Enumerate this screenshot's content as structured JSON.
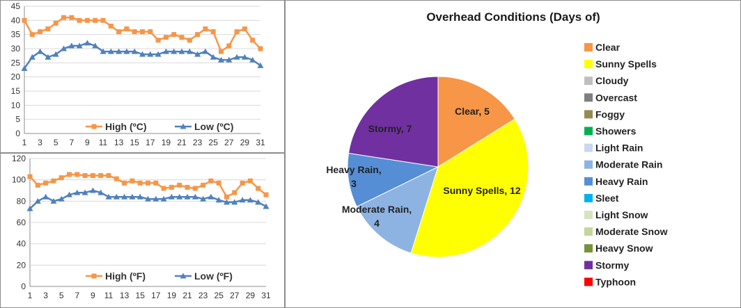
{
  "chart_data": [
    {
      "type": "line",
      "title": "",
      "xlabel": "",
      "ylabel": "",
      "x": [
        1,
        2,
        3,
        4,
        5,
        6,
        7,
        8,
        9,
        10,
        11,
        12,
        13,
        14,
        15,
        16,
        17,
        18,
        19,
        20,
        21,
        22,
        23,
        24,
        25,
        26,
        27,
        28,
        29,
        30,
        31
      ],
      "x_tick_labels": [
        "1",
        "3",
        "5",
        "7",
        "9",
        "11",
        "13",
        "15",
        "17",
        "19",
        "21",
        "23",
        "25",
        "27",
        "29",
        "31"
      ],
      "ylim": [
        0,
        45
      ],
      "y_ticks": [
        0,
        5,
        10,
        15,
        20,
        25,
        30,
        35,
        40,
        45
      ],
      "grid": true,
      "legend_position": "bottom",
      "series": [
        {
          "name": "High (ºC)",
          "color": "#f79646",
          "marker": "square",
          "values": [
            40,
            35,
            36,
            37,
            39,
            41,
            41,
            40,
            40,
            40,
            40,
            38,
            36,
            37,
            36,
            36,
            36,
            33,
            34,
            35,
            34,
            33,
            35,
            37,
            36,
            29,
            31,
            36,
            37,
            33,
            30
          ]
        },
        {
          "name": "Low (ºC)",
          "color": "#4f81bd",
          "marker": "triangle",
          "values": [
            23,
            27,
            29,
            27,
            28,
            30,
            31,
            31,
            32,
            31,
            29,
            29,
            29,
            29,
            29,
            28,
            28,
            28,
            29,
            29,
            29,
            29,
            28,
            29,
            27,
            26,
            26,
            27,
            27,
            26,
            24
          ]
        }
      ]
    },
    {
      "type": "line",
      "title": "",
      "xlabel": "",
      "ylabel": "",
      "x": [
        1,
        2,
        3,
        4,
        5,
        6,
        7,
        8,
        9,
        10,
        11,
        12,
        13,
        14,
        15,
        16,
        17,
        18,
        19,
        20,
        21,
        22,
        23,
        24,
        25,
        26,
        27,
        28,
        29,
        30,
        31
      ],
      "x_tick_labels": [
        "1",
        "3",
        "5",
        "7",
        "9",
        "11",
        "13",
        "15",
        "17",
        "19",
        "21",
        "23",
        "25",
        "27",
        "29",
        "31"
      ],
      "ylim": [
        0,
        120
      ],
      "y_ticks": [
        0,
        20,
        40,
        60,
        80,
        100,
        120
      ],
      "grid": true,
      "legend_position": "bottom",
      "series": [
        {
          "name": "High (ºF)",
          "color": "#f79646",
          "marker": "square",
          "values": [
            103,
            95,
            97,
            99,
            102,
            105,
            105,
            104,
            104,
            104,
            104,
            101,
            97,
            99,
            97,
            97,
            97,
            92,
            93,
            95,
            93,
            92,
            95,
            99,
            97,
            84,
            88,
            97,
            99,
            92,
            86
          ]
        },
        {
          "name": "Low (ºF)",
          "color": "#4f81bd",
          "marker": "triangle",
          "values": [
            73,
            80,
            84,
            80,
            82,
            86,
            88,
            88,
            90,
            88,
            84,
            84,
            84,
            84,
            84,
            82,
            82,
            82,
            84,
            84,
            84,
            84,
            82,
            84,
            81,
            79,
            79,
            81,
            81,
            79,
            75
          ]
        }
      ]
    },
    {
      "type": "pie",
      "title": "Overhead Conditions (Days of)",
      "legend_position": "right",
      "slices": [
        {
          "label": "Clear",
          "value": 5,
          "color": "#f79646",
          "text": "Clear, 5"
        },
        {
          "label": "Sunny Spells",
          "value": 12,
          "color": "#ffff00",
          "text": "Sunny Spells, 12"
        },
        {
          "label": "Moderate Rain",
          "value": 4,
          "color": "#8db3e2",
          "text": "Moderate Rain, 4"
        },
        {
          "label": "Heavy Rain",
          "value": 3,
          "color": "#558ed5",
          "text": "Heavy Rain, 3"
        },
        {
          "label": "Stormy",
          "value": 7,
          "color": "#7030a0",
          "text": "Stormy,  7"
        }
      ],
      "legend": [
        {
          "label": "Clear",
          "color": "#f79646"
        },
        {
          "label": "Sunny Spells",
          "color": "#ffff00"
        },
        {
          "label": "Cloudy",
          "color": "#bfbfbf"
        },
        {
          "label": "Overcast",
          "color": "#7f7f7f"
        },
        {
          "label": "Foggy",
          "color": "#948a54"
        },
        {
          "label": "Showers",
          "color": "#00b050"
        },
        {
          "label": "Light Rain",
          "color": "#c6d9f1"
        },
        {
          "label": "Moderate Rain",
          "color": "#8db3e2"
        },
        {
          "label": "Heavy Rain",
          "color": "#558ed5"
        },
        {
          "label": "Sleet",
          "color": "#00b0f0"
        },
        {
          "label": "Light Snow",
          "color": "#d8e4bc"
        },
        {
          "label": "Moderate Snow",
          "color": "#c3d69b"
        },
        {
          "label": "Heavy Snow",
          "color": "#76933c"
        },
        {
          "label": "Stormy",
          "color": "#7030a0"
        },
        {
          "label": "Typhoon",
          "color": "#ff0000"
        }
      ]
    }
  ]
}
